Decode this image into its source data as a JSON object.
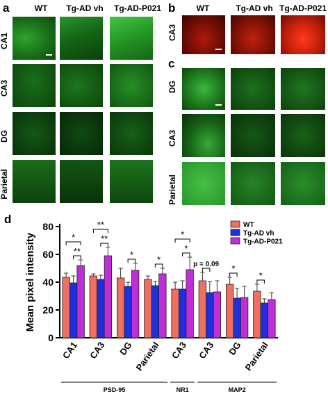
{
  "figure": {
    "panel_a": {
      "label": "a",
      "columns": [
        "WT",
        "Tg-AD vh",
        "Tg-AD-P021"
      ],
      "rows": [
        "CA1",
        "CA3",
        "DG",
        "Parietal"
      ],
      "tint": "#20c020"
    },
    "panel_b": {
      "label": "b",
      "columns": [
        "WT",
        "Tg-AD vh",
        "Tg-AD-P021"
      ],
      "rows": [
        "CA3"
      ],
      "tint": "#e01010"
    },
    "panel_c": {
      "label": "c",
      "rows": [
        "DG",
        "CA3",
        "Parietal"
      ],
      "tint": "#20c020"
    },
    "panel_d": {
      "label": "d"
    }
  },
  "chart_data": {
    "type": "bar",
    "title": "",
    "ylabel": "Mean pixel intensity",
    "xlabel": "",
    "ylim": [
      0,
      80
    ],
    "yticks": [
      0,
      20,
      40,
      60,
      80
    ],
    "categories": [
      "CA1",
      "CA3",
      "DG",
      "Parietal",
      "CA3",
      "CA3",
      "DG",
      "Parietal"
    ],
    "groups": [
      {
        "label": "PSD-95",
        "span": [
          0,
          3
        ]
      },
      {
        "label": "NR1",
        "span": [
          4,
          4
        ]
      },
      {
        "label": "MAP2",
        "span": [
          5,
          7
        ]
      }
    ],
    "series": [
      {
        "name": "WT",
        "color": "#f07060",
        "values": [
          43.5,
          44.5,
          43,
          42,
          35,
          41,
          38.5,
          33.5
        ],
        "errors": [
          3,
          1.5,
          7,
          2.5,
          5,
          6,
          5,
          5
        ]
      },
      {
        "name": "Tg-AD vh",
        "color": "#1f2fe0",
        "values": [
          39.5,
          42,
          37,
          37.5,
          35,
          32.5,
          28.5,
          25
        ],
        "errors": [
          5,
          3,
          3,
          3,
          6,
          8,
          7,
          3
        ]
      },
      {
        "name": "Tg-AD-P021",
        "color": "#c02ed8",
        "values": [
          52,
          59,
          48.5,
          46,
          49,
          33,
          29,
          27.5
        ],
        "errors": [
          4,
          6,
          5,
          4,
          9,
          8,
          8,
          5
        ]
      }
    ],
    "significance": [
      {
        "index": 0,
        "pairs": [
          [
            0,
            2
          ],
          [
            1,
            2
          ]
        ],
        "labels": [
          "*",
          "**"
        ]
      },
      {
        "index": 1,
        "pairs": [
          [
            0,
            2
          ],
          [
            1,
            2
          ]
        ],
        "labels": [
          "**",
          "**"
        ]
      },
      {
        "index": 2,
        "pairs": [
          [
            1,
            2
          ]
        ],
        "labels": [
          "*"
        ]
      },
      {
        "index": 3,
        "pairs": [
          [
            1,
            2
          ]
        ],
        "labels": [
          "*"
        ]
      },
      {
        "index": 4,
        "pairs": [
          [
            0,
            2
          ],
          [
            1,
            2
          ]
        ],
        "labels": [
          "*",
          "*"
        ]
      },
      {
        "index": 5,
        "pairs": [
          [
            0,
            1
          ]
        ],
        "labels": [
          "p = 0.09"
        ]
      },
      {
        "index": 6,
        "pairs": [
          [
            0,
            1
          ]
        ],
        "labels": [
          "*"
        ]
      },
      {
        "index": 7,
        "pairs": [
          [
            0,
            1
          ]
        ],
        "labels": [
          "*"
        ]
      }
    ],
    "legend_position": "top-right"
  }
}
